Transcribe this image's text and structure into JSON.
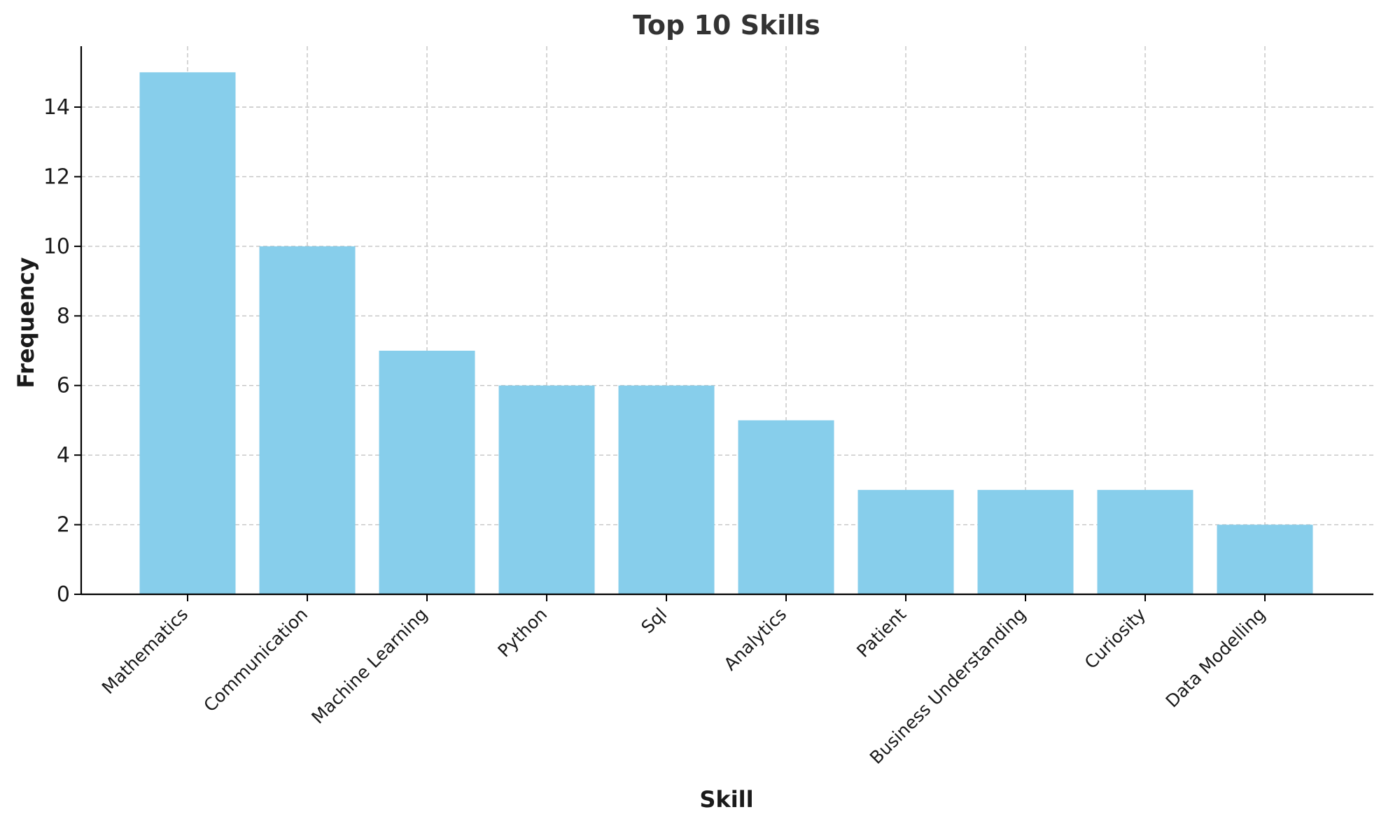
{
  "chart_data": {
    "type": "bar",
    "title": "Top 10 Skills",
    "xlabel": "Skill",
    "ylabel": "Frequency",
    "categories": [
      "Mathematics",
      "Communication",
      "Machine Learning",
      "Python",
      "Sql",
      "Analytics",
      "Patient",
      "Business Understanding",
      "Curiosity",
      "Data Modelling"
    ],
    "values": [
      15,
      10,
      7,
      6,
      6,
      5,
      3,
      3,
      3,
      2
    ],
    "ylim": [
      0,
      15.75
    ],
    "yticks": [
      0,
      2,
      4,
      6,
      8,
      10,
      12,
      14
    ],
    "grid": true,
    "bar_color": "#87ceeb"
  }
}
